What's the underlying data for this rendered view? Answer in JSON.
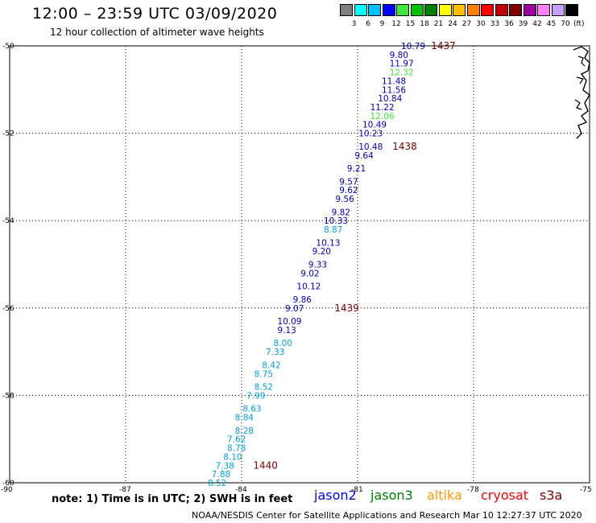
{
  "header": {
    "title": "12:00 – 23:59 UTC 03/09/2020",
    "subtitle": "12 hour collection of altimeter wave heights"
  },
  "legend": {
    "unit": "(ft)",
    "colors": [
      "#7f7f7f",
      "#00ffff",
      "#00bfff",
      "#0000ff",
      "#40e640",
      "#00c000",
      "#008000",
      "#ffff00",
      "#ffc000",
      "#ff8000",
      "#ff0000",
      "#c00000",
      "#800000",
      "#a000a0",
      "#ff80ff",
      "#c8a0ff",
      "#000000"
    ],
    "labels": [
      "3",
      "6",
      "9",
      "12",
      "15",
      "18",
      "21",
      "24",
      "27",
      "30",
      "33",
      "36",
      "39",
      "42",
      "45",
      "70"
    ]
  },
  "axes": {
    "lat_ticks": [
      "-50",
      "-52",
      "-54",
      "-56",
      "-58",
      "-60"
    ],
    "lon_ticks": [
      "-90",
      "-87",
      "-84",
      "-81",
      "-78",
      "-75"
    ]
  },
  "chart_data": {
    "type": "scatter",
    "description_fields": "altimeter swh labels along ground track",
    "xlim": [
      -90,
      -75
    ],
    "ylim": [
      -60,
      -50
    ],
    "points": [
      {
        "lon": -80.0,
        "lat": -50.0,
        "v": "10.79",
        "c": "#0000c0"
      },
      {
        "lon": -80.3,
        "lat": -50.2,
        "v": "9.80",
        "c": "#0000c0"
      },
      {
        "lon": -80.3,
        "lat": -50.4,
        "v": "11.97",
        "c": "#0000c0"
      },
      {
        "lon": -80.3,
        "lat": -50.6,
        "v": "12.32",
        "c": "#40e640"
      },
      {
        "lon": -80.5,
        "lat": -50.8,
        "v": "11.48",
        "c": "#0000c0"
      },
      {
        "lon": -80.5,
        "lat": -51.0,
        "v": "11.56",
        "c": "#0000c0"
      },
      {
        "lon": -80.6,
        "lat": -51.2,
        "v": "10.84",
        "c": "#0000c0"
      },
      {
        "lon": -80.8,
        "lat": -51.4,
        "v": "11.22",
        "c": "#0000c0"
      },
      {
        "lon": -80.8,
        "lat": -51.6,
        "v": "12.06",
        "c": "#40e640"
      },
      {
        "lon": -81.0,
        "lat": -51.8,
        "v": "10.49",
        "c": "#0000c0"
      },
      {
        "lon": -81.1,
        "lat": -52.0,
        "v": "10.23",
        "c": "#0000c0"
      },
      {
        "lon": -81.1,
        "lat": -52.3,
        "v": "10.48",
        "c": "#0000c0"
      },
      {
        "lon": -81.2,
        "lat": -52.5,
        "v": "9.64",
        "c": "#0000c0"
      },
      {
        "lon": -81.4,
        "lat": -52.8,
        "v": "9.21",
        "c": "#0000c0"
      },
      {
        "lon": -81.6,
        "lat": -53.1,
        "v": "9.57",
        "c": "#0000c0"
      },
      {
        "lon": -81.6,
        "lat": -53.3,
        "v": "9.62",
        "c": "#0000c0"
      },
      {
        "lon": -81.7,
        "lat": -53.5,
        "v": "9.56",
        "c": "#0000c0"
      },
      {
        "lon": -81.8,
        "lat": -53.8,
        "v": "9.82",
        "c": "#0000c0"
      },
      {
        "lon": -82.0,
        "lat": -54.0,
        "v": "10.33",
        "c": "#0000c0"
      },
      {
        "lon": -82.0,
        "lat": -54.2,
        "v": "8.87",
        "c": "#00a0e0"
      },
      {
        "lon": -82.2,
        "lat": -54.5,
        "v": "10.13",
        "c": "#0000c0"
      },
      {
        "lon": -82.3,
        "lat": -54.7,
        "v": "9.20",
        "c": "#0000c0"
      },
      {
        "lon": -82.4,
        "lat": -55.0,
        "v": "9.33",
        "c": "#0000c0"
      },
      {
        "lon": -82.6,
        "lat": -55.2,
        "v": "9.02",
        "c": "#0000c0"
      },
      {
        "lon": -82.7,
        "lat": -55.5,
        "v": "10.12",
        "c": "#0000c0"
      },
      {
        "lon": -82.8,
        "lat": -55.8,
        "v": "9.86",
        "c": "#0000c0"
      },
      {
        "lon": -83.0,
        "lat": -56.0,
        "v": "9.07",
        "c": "#0000c0"
      },
      {
        "lon": -83.2,
        "lat": -56.3,
        "v": "10.09",
        "c": "#0000c0"
      },
      {
        "lon": -83.2,
        "lat": -56.5,
        "v": "9.13",
        "c": "#0000c0"
      },
      {
        "lon": -83.3,
        "lat": -56.8,
        "v": "8.00",
        "c": "#00a0e0"
      },
      {
        "lon": -83.5,
        "lat": -57.0,
        "v": "7.33",
        "c": "#00a0e0"
      },
      {
        "lon": -83.6,
        "lat": -57.3,
        "v": "8.42",
        "c": "#00a0e0"
      },
      {
        "lon": -83.8,
        "lat": -57.5,
        "v": "8.75",
        "c": "#00a0e0"
      },
      {
        "lon": -83.8,
        "lat": -57.8,
        "v": "8.52",
        "c": "#00a0e0"
      },
      {
        "lon": -84.0,
        "lat": -58.0,
        "v": "7.99",
        "c": "#00a0e0"
      },
      {
        "lon": -84.1,
        "lat": -58.3,
        "v": "8.63",
        "c": "#00a0e0"
      },
      {
        "lon": -84.3,
        "lat": -58.5,
        "v": "8.84",
        "c": "#00a0e0"
      },
      {
        "lon": -84.3,
        "lat": -58.8,
        "v": "8.28",
        "c": "#00a0e0"
      },
      {
        "lon": -84.5,
        "lat": -59.0,
        "v": "7.62",
        "c": "#00a0e0"
      },
      {
        "lon": -84.5,
        "lat": -59.2,
        "v": "8.78",
        "c": "#00a0e0"
      },
      {
        "lon": -84.6,
        "lat": -59.4,
        "v": "8.10",
        "c": "#00a0e0"
      },
      {
        "lon": -84.8,
        "lat": -59.6,
        "v": "7.38",
        "c": "#00a0e0"
      },
      {
        "lon": -84.9,
        "lat": -59.8,
        "v": "7.88",
        "c": "#00a0e0"
      },
      {
        "lon": -85.0,
        "lat": -60.0,
        "v": "8.52",
        "c": "#00a0e0"
      }
    ],
    "time_labels": [
      {
        "lon": -79.1,
        "lat": -50.0,
        "t": "1437"
      },
      {
        "lon": -80.1,
        "lat": -52.3,
        "t": "1438"
      },
      {
        "lon": -81.6,
        "lat": -56.0,
        "t": "1439"
      },
      {
        "lon": -83.7,
        "lat": -59.6,
        "t": "1440"
      }
    ]
  },
  "footer": {
    "note": "note: 1) Time is in UTC; 2) SWH is in feet",
    "missions": [
      {
        "name": "jason2",
        "color": "#0000ff"
      },
      {
        "name": "jason3",
        "color": "#008000"
      },
      {
        "name": "altika",
        "color": "#ff9900"
      },
      {
        "name": "cryosat",
        "color": "#ff0000"
      },
      {
        "name": "s3a",
        "color": "#800000"
      }
    ],
    "credit": "NOAA/NESDIS Center for Satellite Applications and Research   Mar 10 12:27:37 UTC 2020"
  }
}
